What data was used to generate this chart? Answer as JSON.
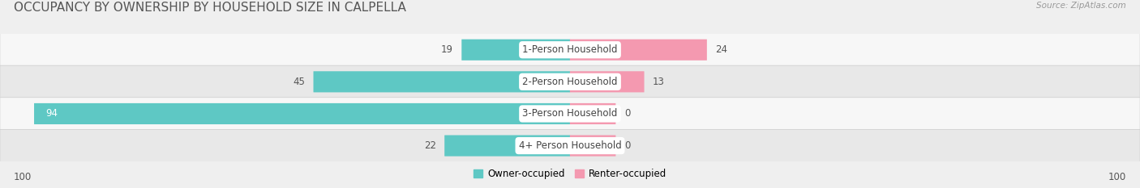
{
  "title": "OCCUPANCY BY OWNERSHIP BY HOUSEHOLD SIZE IN CALPELLA",
  "source": "Source: ZipAtlas.com",
  "categories": [
    "1-Person Household",
    "2-Person Household",
    "3-Person Household",
    "4+ Person Household"
  ],
  "owner_values": [
    19,
    45,
    94,
    22
  ],
  "renter_values": [
    24,
    13,
    0,
    0
  ],
  "renter_display": [
    24,
    13,
    0,
    0
  ],
  "renter_stub": 8,
  "owner_color": "#5ec8c4",
  "renter_color": "#f499b0",
  "bg_color": "#efefef",
  "row_colors": [
    "#f7f7f7",
    "#e8e8e8",
    "#f7f7f7",
    "#e8e8e8"
  ],
  "max_val": 100,
  "legend_owner": "Owner-occupied",
  "legend_renter": "Renter-occupied",
  "axis_left": "100",
  "axis_right": "100",
  "title_fontsize": 11,
  "label_fontsize": 8.5,
  "value_fontsize": 8.5
}
